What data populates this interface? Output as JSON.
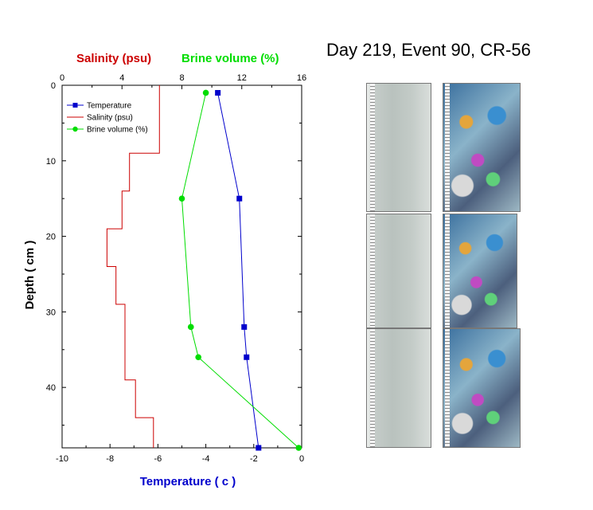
{
  "title": "Day 219, Event 90, CR-56",
  "colors": {
    "temperature": "#0000cc",
    "salinity": "#cc0000",
    "brine": "#00dd00",
    "axis": "#000000"
  },
  "chart_data": {
    "type": "line",
    "xlabel_top_salinity": "Salinity (psu)",
    "xlabel_top_brine": "Brine volume (%)",
    "xlabel_bottom": "Temperature ( c )",
    "ylabel": "Depth ( cm )",
    "top_axis": {
      "range": [
        0,
        16
      ],
      "ticks": [
        "0",
        "4",
        "8",
        "12",
        "16"
      ]
    },
    "bottom_axis": {
      "range": [
        -10,
        0
      ],
      "ticks": [
        "-10",
        "-8",
        "-6",
        "-4",
        "-2",
        "0"
      ]
    },
    "y_axis": {
      "range": [
        0,
        48
      ],
      "inverted": true,
      "ticks": [
        "0",
        "10",
        "20",
        "30",
        "40"
      ]
    },
    "legend": {
      "placement": "top-left",
      "entries": [
        "Temperature",
        "Salinity (psu)",
        "Brine volume (%)"
      ]
    },
    "series": [
      {
        "name": "Temperature",
        "axis": "bottom",
        "marker": "square",
        "points": [
          [
            -3.5,
            1
          ],
          [
            -2.6,
            15
          ],
          [
            -2.4,
            32
          ],
          [
            -2.3,
            36
          ],
          [
            -1.8,
            48
          ]
        ]
      },
      {
        "name": "Salinity (psu)",
        "axis": "top",
        "style": "step",
        "points": [
          [
            6.5,
            0
          ],
          [
            6.5,
            9
          ],
          [
            4.5,
            9
          ],
          [
            4.5,
            14
          ],
          [
            4.0,
            14
          ],
          [
            4.0,
            19
          ],
          [
            3.0,
            19
          ],
          [
            3.0,
            24
          ],
          [
            3.6,
            24
          ],
          [
            3.6,
            29
          ],
          [
            4.2,
            29
          ],
          [
            4.2,
            39
          ],
          [
            4.9,
            39
          ],
          [
            4.9,
            44
          ],
          [
            6.1,
            44
          ],
          [
            6.1,
            48
          ]
        ]
      },
      {
        "name": "Brine volume (%)",
        "axis": "top",
        "marker": "circle",
        "points": [
          [
            9.6,
            1
          ],
          [
            8.0,
            15
          ],
          [
            8.6,
            32
          ],
          [
            9.1,
            36
          ],
          [
            15.8,
            48
          ]
        ]
      }
    ]
  },
  "photos": [
    {
      "kind": "plain"
    },
    {
      "kind": "polar"
    },
    {
      "kind": "plain"
    },
    {
      "kind": "polar"
    },
    {
      "kind": "plain"
    },
    {
      "kind": "polar"
    }
  ]
}
